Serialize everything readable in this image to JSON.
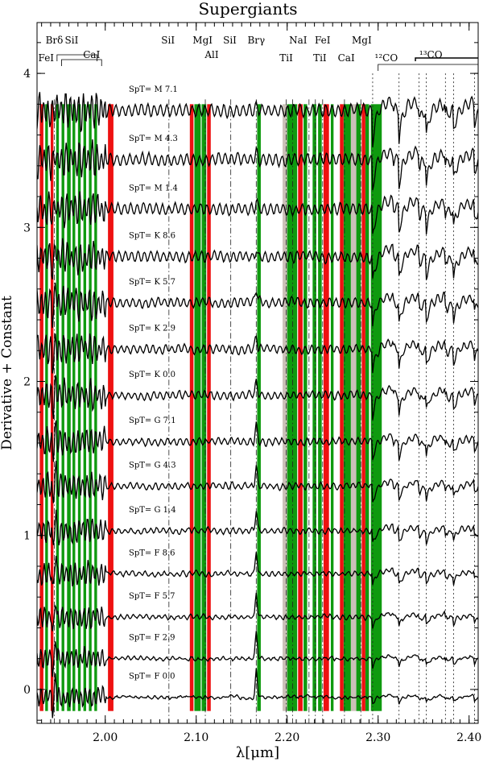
{
  "chart_data": {
    "type": "line",
    "title": "Supergiants",
    "xlabel": "λ[μm]",
    "ylabel": "Derivative + Constant",
    "xlim": [
      1.925,
      2.41
    ],
    "ylim": [
      -0.22,
      4.33
    ],
    "xticks": [
      2.0,
      2.1,
      2.2,
      2.3,
      2.4
    ],
    "xtick_labels": [
      "2.00",
      "2.10",
      "2.20",
      "2.30",
      "2.40"
    ],
    "yticks": [
      0,
      1,
      2,
      3,
      4
    ],
    "ytick_labels": [
      "0",
      "1",
      "2",
      "3",
      "4"
    ],
    "series": [
      {
        "label": "SpT=  F  0.0",
        "offset": -0.05
      },
      {
        "label": "SpT=  F  2.9",
        "offset": 0.2
      },
      {
        "label": "SpT=  F  5.7",
        "offset": 0.47
      },
      {
        "label": "SpT=  F  8.6",
        "offset": 0.75
      },
      {
        "label": "SpT=  G  1.4",
        "offset": 1.03
      },
      {
        "label": "SpT=  G  4.3",
        "offset": 1.32
      },
      {
        "label": "SpT=  G  7.1",
        "offset": 1.61
      },
      {
        "label": "SpT=  K  0.0",
        "offset": 1.91
      },
      {
        "label": "SpT=  K  2.9",
        "offset": 2.21
      },
      {
        "label": "SpT=  K  5.7",
        "offset": 2.51
      },
      {
        "label": "SpT=  K  8.6",
        "offset": 2.81
      },
      {
        "label": "SpT=  M  1.4",
        "offset": 3.12
      },
      {
        "label": "SpT=  M  4.3",
        "offset": 3.44
      },
      {
        "label": "SpT=  M  7.1",
        "offset": 3.76
      }
    ],
    "bands_red": [
      [
        1.928,
        1.932
      ],
      [
        1.94,
        1.943
      ],
      [
        2.003,
        2.009
      ],
      [
        2.093,
        2.097
      ],
      [
        2.112,
        2.116
      ],
      [
        2.212,
        2.217
      ],
      [
        2.24,
        2.246
      ],
      [
        2.258,
        2.262
      ],
      [
        2.282,
        2.286
      ]
    ],
    "bands_green": [
      [
        1.934,
        1.937
      ],
      [
        1.946,
        1.949
      ],
      [
        1.952,
        1.955
      ],
      [
        1.958,
        1.962
      ],
      [
        1.964,
        1.967
      ],
      [
        1.97,
        1.973
      ],
      [
        1.976,
        1.979
      ],
      [
        1.982,
        1.985
      ],
      [
        1.988,
        1.991
      ],
      [
        2.098,
        2.105
      ],
      [
        2.106,
        2.111
      ],
      [
        2.167,
        2.171
      ],
      [
        2.2,
        2.211
      ],
      [
        2.218,
        2.222
      ],
      [
        2.228,
        2.232
      ],
      [
        2.234,
        2.238
      ],
      [
        2.248,
        2.251
      ],
      [
        2.262,
        2.27
      ],
      [
        2.276,
        2.281
      ],
      [
        2.286,
        2.29
      ],
      [
        2.292,
        2.304
      ]
    ],
    "bands_gray": [
      [
        2.195,
        2.2
      ],
      [
        2.27,
        2.276
      ]
    ],
    "line_labels": [
      {
        "text": "FeI",
        "x": 1.935,
        "row": 3
      },
      {
        "text": "Brδ",
        "x": 1.944,
        "row": 1
      },
      {
        "text": "SiI",
        "x": 1.963,
        "row": 1
      },
      {
        "text": "CaI",
        "x": 1.985,
        "row": 2
      },
      {
        "text": "SiI",
        "x": 2.069,
        "row": 1
      },
      {
        "text": "MgI",
        "x": 2.107,
        "row": 1
      },
      {
        "text": "AlI",
        "x": 2.117,
        "row": 2
      },
      {
        "text": "SiI",
        "x": 2.137,
        "row": 1
      },
      {
        "text": "Brγ",
        "x": 2.166,
        "row": 1
      },
      {
        "text": "TiI",
        "x": 2.199,
        "row": 3
      },
      {
        "text": "NaI",
        "x": 2.212,
        "row": 1
      },
      {
        "text": "FeI",
        "x": 2.239,
        "row": 1
      },
      {
        "text": "TiI",
        "x": 2.236,
        "row": 3
      },
      {
        "text": "CaI",
        "x": 2.265,
        "row": 3
      },
      {
        "text": "MgI",
        "x": 2.282,
        "row": 1
      },
      {
        "text": "¹²CO",
        "x": 2.309,
        "row": 3
      },
      {
        "text": "¹³CO",
        "x": 2.358,
        "row": 2
      }
    ],
    "dotdash_lines": [
      1.944,
      2.07,
      2.11,
      2.138,
      2.166,
      2.199,
      2.206,
      2.224,
      2.231,
      2.239,
      2.263,
      2.281
    ],
    "co_bandheads": [
      2.294,
      2.323,
      2.353,
      2.383
    ],
    "co13_bandheads": [
      2.345,
      2.374,
      2.406
    ]
  }
}
